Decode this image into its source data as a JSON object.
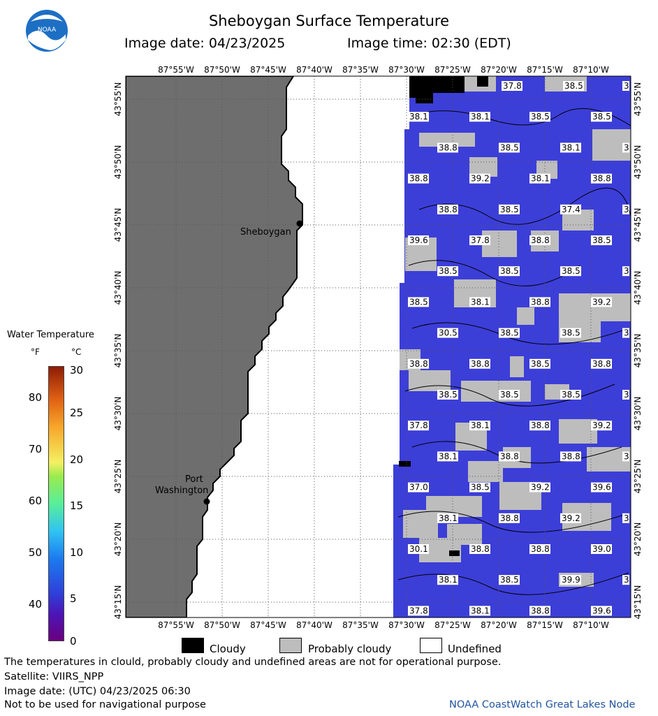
{
  "header": {
    "title": "Sheboygan Surface Temperature",
    "image_date": "Image date: 04/23/2025",
    "image_time": "Image time: 02:30 (EDT)"
  },
  "logo": {
    "name": "noaa-logo",
    "text": "NOAA"
  },
  "map": {
    "lon_labels": [
      "87°55'W",
      "87°50'W",
      "87°45'W",
      "87°40'W",
      "87°35'W",
      "87°30'W",
      "87°25'W",
      "87°20'W",
      "87°15'W",
      "87°10'W"
    ],
    "lat_labels": [
      "43°55'N",
      "43°50'N",
      "43°45'N",
      "43°40'N",
      "43°35'N",
      "43°30'N",
      "43°25'N",
      "43°20'N",
      "43°15'N"
    ],
    "cities": [
      {
        "name": "Sheboygan"
      },
      {
        "name_line1": "Port",
        "name_line2": "Washington"
      }
    ],
    "temperature_labels": [
      [
        "37.8",
        "38.5",
        "3"
      ],
      [
        "38.1",
        "38.1",
        "38.5",
        "38.5"
      ],
      [
        "38.8",
        "38.5",
        "38.1",
        "3"
      ],
      [
        "38.8",
        "39.2",
        "38.1",
        "38.8"
      ],
      [
        "38.8",
        "38.5",
        "37.4",
        "3"
      ],
      [
        "39.6",
        "37.8",
        "38.8",
        "38.5"
      ],
      [
        "38.5",
        "38.5",
        "38.5",
        "3"
      ],
      [
        "38.5",
        "38.1",
        "38.8",
        "39.2"
      ],
      [
        "30.5",
        "38.5",
        "38.5",
        "3"
      ],
      [
        "38.8",
        "38.8",
        "38.5",
        "38.8"
      ],
      [
        "38.5",
        "38.5",
        "38.5",
        "3"
      ],
      [
        "37.8",
        "38.1",
        "38.8",
        "39.2"
      ],
      [
        "38.1",
        "38.8",
        "38.8",
        "3"
      ],
      [
        "37.0",
        "38.5",
        "39.2",
        "39.6"
      ],
      [
        "38.1",
        "38.8",
        "39.2",
        "3"
      ],
      [
        "30.1",
        "38.8",
        "38.8",
        "39.0"
      ],
      [
        "38.1",
        "38.5",
        "39.9",
        "3"
      ],
      [
        "37.8",
        "38.1",
        "38.8",
        "39.6"
      ]
    ]
  },
  "legend": {
    "title": "Water Temperature",
    "unit_f": "°F",
    "unit_c": "°C",
    "ticks_f": [
      "80",
      "70",
      "60",
      "50",
      "40"
    ],
    "ticks_c": [
      "30",
      "25",
      "20",
      "15",
      "10",
      "5",
      "0"
    ]
  },
  "key": {
    "cloudy": "Cloudy",
    "probably_cloudy": "Probably cloudy",
    "undefined": "Undefined"
  },
  "footer": {
    "line1": "The temperatures in clould, probably cloudy and undefined areas are not for operational purpose.",
    "line2": "Satellite: VIIRS_NPP",
    "line3": "Image date: (UTC) 04/23/2025  06:30",
    "line4": "Not to be used for navigational purpose",
    "credit": "NOAA CoastWatch Great Lakes Node"
  },
  "colors": {
    "land": "#6e6e6e",
    "water": "#3c3ed8",
    "cloud": "#000000",
    "probably_cloudy": "#bdbdbd",
    "undefined": "#ffffff"
  }
}
